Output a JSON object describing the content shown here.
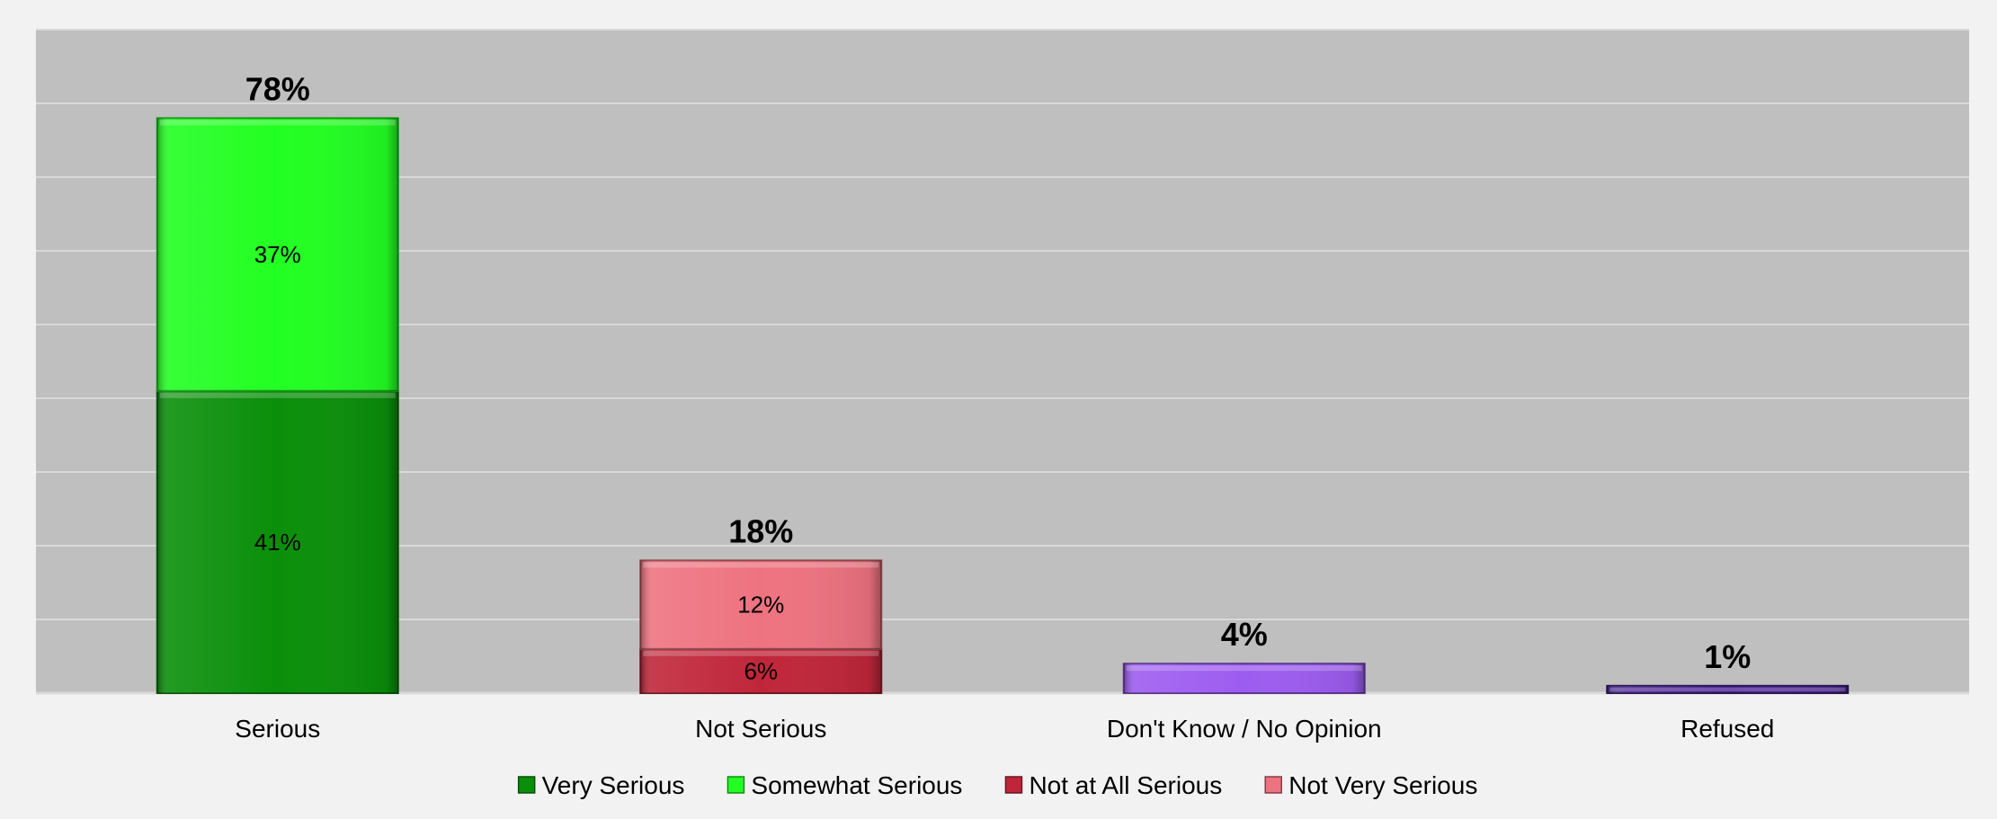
{
  "chart_data": {
    "type": "bar",
    "stacked": true,
    "categories": [
      "Serious",
      "Not Serious",
      "Don't Know / No Opinion",
      "Refused"
    ],
    "ylim": [
      0,
      90
    ],
    "grid": true,
    "legend_position": "bottom",
    "series": [
      {
        "name": "Very Serious",
        "color": "#0a8f0a",
        "values": [
          41,
          null,
          null,
          null
        ],
        "labels": [
          "41%",
          "",
          "",
          ""
        ]
      },
      {
        "name": "Somewhat Serious",
        "color": "#22ff22",
        "values": [
          37,
          null,
          null,
          null
        ],
        "labels": [
          "37%",
          "",
          "",
          ""
        ]
      },
      {
        "name": "Not at All Serious",
        "color": "#c0263a",
        "values": [
          null,
          6,
          null,
          null
        ],
        "labels": [
          "",
          "6%",
          "",
          ""
        ]
      },
      {
        "name": "Not Very Serious",
        "color": "#ee7380",
        "values": [
          null,
          12,
          null,
          null
        ],
        "labels": [
          "",
          "12%",
          "",
          ""
        ]
      },
      {
        "name": "",
        "color": "#9d5cf0",
        "values": [
          null,
          null,
          4,
          null
        ],
        "labels": [
          "",
          "",
          "",
          ""
        ]
      },
      {
        "name": "",
        "color": "#4a2391",
        "values": [
          null,
          null,
          null,
          1
        ],
        "labels": [
          "",
          "",
          "",
          ""
        ]
      }
    ],
    "totals": [
      "78%",
      "18%",
      "4%",
      "1%"
    ],
    "legend": [
      {
        "name": "Very Serious",
        "color": "#0a8f0a"
      },
      {
        "name": "Somewhat Serious",
        "color": "#22ff22"
      },
      {
        "name": "Not at All Serious",
        "color": "#c0263a"
      },
      {
        "name": "Not Very Serious",
        "color": "#ee7380"
      }
    ]
  }
}
